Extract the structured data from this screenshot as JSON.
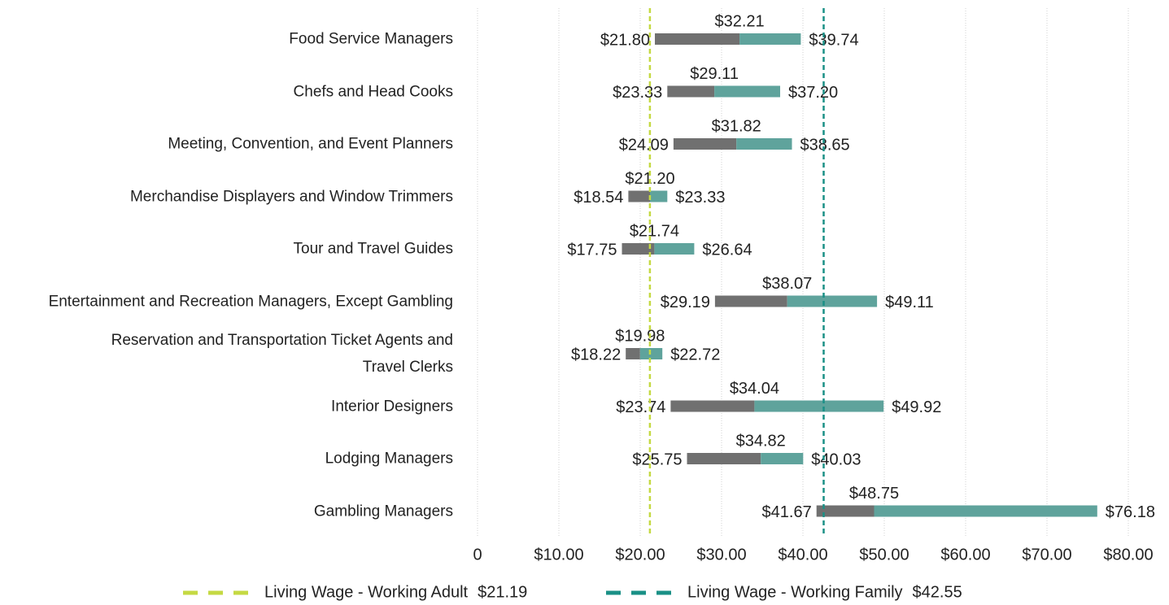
{
  "chart_data": {
    "type": "range_bar",
    "categories": [
      "Food Service Managers",
      "Chefs and Head Cooks",
      "Meeting, Convention, and Event Planners",
      "Merchandise Displayers and Window Trimmers",
      "Tour and Travel Guides",
      "Entertainment and Recreation Managers, Except Gambling",
      "Reservation and Transportation Ticket Agents and\nTravel Clerks",
      "Interior Designers",
      "Lodging Managers",
      "Gambling Managers"
    ],
    "low": [
      21.8,
      23.33,
      24.09,
      18.54,
      17.75,
      29.19,
      18.22,
      23.74,
      25.75,
      41.67
    ],
    "low_labels": [
      "$21.80",
      "$23.33",
      "$24.09",
      "$18.54",
      "$17.75",
      "$29.19",
      "$18.22",
      "$23.74",
      "$25.75",
      "$41.67"
    ],
    "median": [
      32.21,
      29.11,
      31.82,
      21.2,
      21.74,
      38.07,
      19.98,
      34.04,
      34.82,
      48.75
    ],
    "median_labels": [
      "$32.21",
      "$29.11",
      "$31.82",
      "$21.20",
      "$21.74",
      "$38.07",
      "$19.98",
      "$34.04",
      "$34.82",
      "$48.75"
    ],
    "high": [
      39.74,
      37.2,
      38.65,
      23.33,
      26.64,
      49.11,
      22.72,
      49.92,
      40.03,
      76.18
    ],
    "high_labels": [
      "$39.74",
      "$37.20",
      "$38.65",
      "$23.33",
      "$26.64",
      "$49.11",
      "$22.72",
      "$49.92",
      "$40.03",
      "$76.18"
    ],
    "lower_color": "#707070",
    "upper_color": "#5fa39c",
    "xlim": [
      0,
      80
    ],
    "xticks": [
      0,
      {
        "value": 10,
        "label": "$10.00"
      },
      {
        "value": 20,
        "label": "$20.00"
      },
      {
        "value": 30,
        "label": "$30.00"
      },
      {
        "value": 40,
        "label": "$40.00"
      },
      {
        "value": 50,
        "label": "$50.00"
      },
      {
        "value": 60,
        "label": "$60.00"
      },
      {
        "value": 70,
        "label": "$70.00"
      },
      {
        "value": 80,
        "label": "$80.00"
      }
    ],
    "grid": true,
    "reference_lines": [
      {
        "name": "Living Wage - Working Adult",
        "value": 21.19,
        "value_label": "$21.19",
        "color": "#c5d943"
      },
      {
        "name": "Living Wage - Working Family",
        "value": 42.55,
        "value_label": "$42.55",
        "color": "#1a9086"
      }
    ],
    "legend": "bottom"
  }
}
